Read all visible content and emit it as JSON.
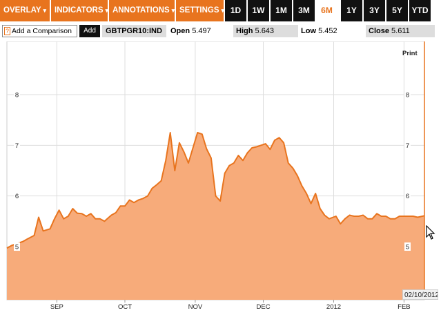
{
  "toolbar": {
    "menus": [
      {
        "label": "OVERLAY",
        "caret": "▾"
      },
      {
        "label": "INDICATORS",
        "caret": "▾"
      },
      {
        "label": "ANNOTATIONS",
        "caret": "▾"
      },
      {
        "label": "SETTINGS",
        "caret": "▾"
      }
    ],
    "ranges": [
      "1D",
      "1W",
      "1M",
      "3M",
      "6M",
      "1Y",
      "3Y",
      "5Y",
      "YTD"
    ],
    "active_range": "6M"
  },
  "info": {
    "compare_help": "?",
    "compare_placeholder": "Add a Comparison",
    "add_label": "Add",
    "ticker": "GBTPGR10:IND",
    "open_label": "Open",
    "open_value": "5.497",
    "high_label": "High",
    "high_value": "5.643",
    "low_label": "Low",
    "low_value": "5.452",
    "close_label": "Close",
    "close_value": "5.611"
  },
  "print_label": "Print",
  "date_badge": "02/10/2012",
  "colors": {
    "accent": "#e8741e",
    "area_fill": "#f7ab7a",
    "line": "#e8741e"
  },
  "chart_data": {
    "type": "area",
    "title": "",
    "xlabel": "",
    "ylabel": "",
    "ylim": [
      3.95,
      9.05
    ],
    "y_ticks": [
      5,
      6,
      7,
      8
    ],
    "x_ticks": [
      {
        "label": "SEP",
        "date": "2011-09-01"
      },
      {
        "label": "OCT",
        "date": "2011-10-01"
      },
      {
        "label": "NOV",
        "date": "2011-11-01"
      },
      {
        "label": "DEC",
        "date": "2011-12-01"
      },
      {
        "label": "2012",
        "date": "2012-01-01"
      },
      {
        "label": "FEB",
        "date": "2012-02-01"
      }
    ],
    "series": [
      {
        "x": [
          "2011-08-10",
          "2011-08-12",
          "2011-08-15",
          "2011-08-17",
          "2011-08-19",
          "2011-08-22",
          "2011-08-24",
          "2011-08-26",
          "2011-08-29",
          "2011-08-31",
          "2011-09-02",
          "2011-09-04",
          "2011-09-06",
          "2011-09-08",
          "2011-09-10",
          "2011-09-12",
          "2011-09-14",
          "2011-09-16",
          "2011-09-18",
          "2011-09-20",
          "2011-09-22",
          "2011-09-25",
          "2011-09-27",
          "2011-09-29",
          "2011-10-01",
          "2011-10-03",
          "2011-10-05",
          "2011-10-07",
          "2011-10-09",
          "2011-10-11",
          "2011-10-13",
          "2011-10-15",
          "2011-10-17",
          "2011-10-19",
          "2011-10-21",
          "2011-10-23",
          "2011-10-25",
          "2011-10-27",
          "2011-10-29",
          "2011-10-31",
          "2011-11-02",
          "2011-11-04",
          "2011-11-06",
          "2011-11-08",
          "2011-11-10",
          "2011-11-12",
          "2011-11-14",
          "2011-11-16",
          "2011-11-18",
          "2011-11-20",
          "2011-11-22",
          "2011-11-24",
          "2011-11-26",
          "2011-11-28",
          "2011-11-30",
          "2011-12-02",
          "2011-12-04",
          "2011-12-06",
          "2011-12-08",
          "2011-12-10",
          "2011-12-12",
          "2011-12-14",
          "2011-12-16",
          "2011-12-18",
          "2011-12-20",
          "2011-12-22",
          "2011-12-24",
          "2011-12-26",
          "2011-12-28",
          "2011-12-30",
          "2012-01-02",
          "2012-01-04",
          "2012-01-06",
          "2012-01-08",
          "2012-01-10",
          "2012-01-12",
          "2012-01-14",
          "2012-01-16",
          "2012-01-18",
          "2012-01-20",
          "2012-01-22",
          "2012-01-24",
          "2012-01-26",
          "2012-01-28",
          "2012-01-30",
          "2012-02-01",
          "2012-02-03",
          "2012-02-05",
          "2012-02-07",
          "2012-02-10"
        ],
        "values": [
          4.97,
          5.02,
          5.07,
          5.1,
          5.15,
          5.22,
          5.58,
          5.31,
          5.35,
          5.55,
          5.72,
          5.55,
          5.6,
          5.75,
          5.66,
          5.65,
          5.6,
          5.65,
          5.55,
          5.55,
          5.5,
          5.62,
          5.67,
          5.8,
          5.8,
          5.92,
          5.87,
          5.92,
          5.95,
          6.0,
          6.15,
          6.22,
          6.3,
          6.7,
          7.25,
          6.5,
          7.05,
          6.87,
          6.65,
          6.95,
          7.25,
          7.22,
          6.93,
          6.75,
          6.0,
          5.9,
          6.45,
          6.6,
          6.65,
          6.8,
          6.7,
          6.85,
          6.95,
          6.97,
          7.0,
          7.03,
          6.92,
          7.1,
          7.15,
          7.05,
          6.65,
          6.55,
          6.4,
          6.2,
          6.05,
          5.85,
          6.05,
          5.75,
          5.62,
          5.55,
          5.6,
          5.45,
          5.55,
          5.62,
          5.6,
          5.6,
          5.62,
          5.55,
          5.55,
          5.65,
          5.6,
          5.6,
          5.55,
          5.55,
          5.6,
          5.6,
          5.6,
          5.6,
          5.58,
          5.61
        ]
      }
    ]
  }
}
